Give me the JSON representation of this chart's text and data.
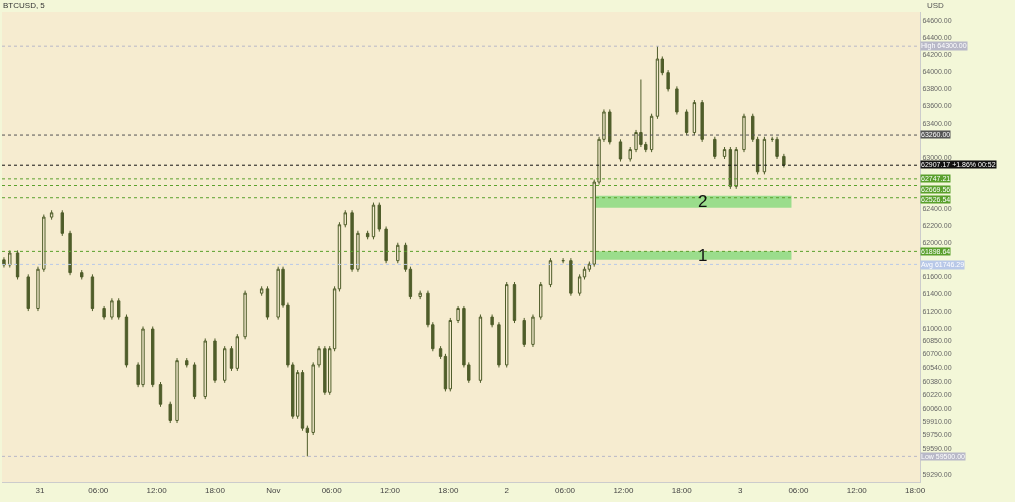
{
  "chart_data": {
    "type": "candlestick",
    "title": "BTCUSD, 5",
    "ylabel": "USD",
    "color": "#4f5d2a",
    "x": [
      "--10-30T20:18",
      "--10-30T20:54",
      "--10-30T21:42",
      "--10-30T22:48",
      "--10-30T23:48",
      "--10-31T00:24",
      "--10-31T01:12",
      "--10-31T02:18",
      "--10-31T03:06",
      "--10-31T04:18",
      "--10-31T05:24",
      "--10-31T06:36",
      "--10-31T07:24",
      "--10-31T08:06",
      "--10-31T08:54",
      "--10-31T10:06",
      "--10-31T10:36",
      "--10-31T11:36",
      "--10-31T12:24",
      "--10-31T13:24",
      "--10-31T14:06",
      "--10-31T15:06",
      "--10-31T15:54",
      "--10-31T17:00",
      "--10-31T18:00",
      "--10-31T19:00",
      "--10-31T19:42",
      "--10-31T20:18",
      "--10-31T21:06",
      "--10-31T22:48",
      "--10-31T23:24",
      "--11-01T00:30",
      "--11-01T01:00",
      "--11-01T01:30",
      "--11-01T02:00",
      "--11-01T02:30",
      "--11-01T03:00",
      "--11-01T03:30",
      "--11-01T04:06",
      "--11-01T04:42",
      "--11-01T05:18",
      "--11-01T05:48",
      "--11-01T06:18",
      "--11-01T06:48",
      "--11-01T07:24",
      "--11-01T08:06",
      "--11-01T08:42",
      "--11-01T09:42",
      "--11-01T10:18",
      "--11-01T10:54",
      "--11-01T11:36",
      "--11-01T12:48",
      "--11-01T13:36",
      "--11-01T14:06",
      "--11-01T15:06",
      "--11-01T15:54",
      "--11-01T16:24",
      "--11-01T17:12",
      "--11-01T17:42",
      "--11-01T18:12",
      "--11-01T19:00",
      "--11-01T19:36",
      "--11-01T20:06",
      "--11-01T21:18",
      "--11-01T22:30",
      "--11-01T23:12",
      "--11-02T00:00",
      "--11-02T00:48",
      "--11-02T01:48",
      "--11-02T02:42",
      "--11-02T03:30",
      "--11-02T04:30",
      "--11-02T05:48",
      "--11-02T06:36",
      "--11-02T07:30",
      "--11-02T08:00",
      "--11-02T08:30",
      "--11-02T09:00",
      "--11-02T09:30",
      "--11-02T10:00",
      "--11-02T10:36",
      "--11-02T11:42",
      "--11-02T12:42",
      "--11-02T13:18",
      "--11-02T13:48",
      "--11-02T14:18",
      "--11-02T14:54",
      "--11-02T15:30",
      "--11-02T16:00",
      "--11-02T16:36",
      "--11-02T17:30",
      "--11-02T18:30",
      "--11-02T19:18",
      "--11-02T20:06",
      "--11-02T21:24",
      "--11-02T22:24",
      "--11-02T23:00",
      "--11-02T23:36",
      "--11-03T00:24",
      "--11-03T01:18",
      "--11-03T01:48",
      "--11-03T02:30",
      "--11-03T03:18",
      "--11-03T03:48",
      "--11-03T04:30"
    ],
    "ohlc": [
      [
        61800,
        61830,
        61710,
        61740
      ],
      [
        61740,
        61910,
        61710,
        61880
      ],
      [
        61880,
        61910,
        61570,
        61600
      ],
      [
        61600,
        61630,
        61200,
        61230
      ],
      [
        61230,
        61720,
        61200,
        61690
      ],
      [
        61690,
        62330,
        61660,
        62300
      ],
      [
        62300,
        62380,
        62270,
        62350
      ],
      [
        62350,
        62380,
        62080,
        62110
      ],
      [
        62110,
        62140,
        61620,
        61650
      ],
      [
        61650,
        61680,
        61570,
        61600
      ],
      [
        61600,
        61630,
        61200,
        61230
      ],
      [
        61230,
        61260,
        61100,
        61130
      ],
      [
        61130,
        61350,
        61100,
        61320
      ],
      [
        61320,
        61350,
        61100,
        61130
      ],
      [
        61130,
        61160,
        60540,
        60570
      ],
      [
        60570,
        60600,
        60310,
        60340
      ],
      [
        60340,
        61020,
        60310,
        60990
      ],
      [
        60990,
        61020,
        60310,
        60340
      ],
      [
        60340,
        60370,
        60080,
        60110
      ],
      [
        60110,
        60140,
        59890,
        59920
      ],
      [
        59920,
        60650,
        59890,
        60620
      ],
      [
        60620,
        60650,
        60540,
        60570
      ],
      [
        60570,
        60600,
        60170,
        60200
      ],
      [
        60200,
        60880,
        60170,
        60850
      ],
      [
        60850,
        60880,
        60360,
        60390
      ],
      [
        60390,
        60790,
        60360,
        60760
      ],
      [
        60760,
        60790,
        60500,
        60530
      ],
      [
        60530,
        60930,
        60500,
        60900
      ],
      [
        60900,
        61440,
        60870,
        61410
      ],
      [
        61410,
        61490,
        61380,
        61460
      ],
      [
        61460,
        61490,
        61100,
        61130
      ],
      [
        61130,
        61720,
        61100,
        61690
      ],
      [
        61690,
        61720,
        61240,
        61270
      ],
      [
        61270,
        61300,
        60540,
        60570
      ],
      [
        60570,
        60600,
        59940,
        59970
      ],
      [
        59970,
        60510,
        59940,
        60480
      ],
      [
        60480,
        60510,
        59800,
        59830
      ],
      [
        59830,
        59860,
        59500,
        59780
      ],
      [
        59780,
        60600,
        59750,
        60570
      ],
      [
        60570,
        60790,
        60540,
        60760
      ],
      [
        60760,
        60790,
        60220,
        60250
      ],
      [
        60250,
        60790,
        60220,
        60760
      ],
      [
        60760,
        61490,
        60730,
        61460
      ],
      [
        61460,
        62240,
        61430,
        62210
      ],
      [
        62210,
        62380,
        62180,
        62350
      ],
      [
        62350,
        62380,
        61660,
        61690
      ],
      [
        61690,
        62140,
        61660,
        62110
      ],
      [
        62110,
        62140,
        62040,
        62070
      ],
      [
        62070,
        62470,
        62040,
        62440
      ],
      [
        62440,
        62470,
        62130,
        62160
      ],
      [
        62160,
        62190,
        61760,
        61790
      ],
      [
        61790,
        62000,
        61760,
        61970
      ],
      [
        61970,
        62000,
        61660,
        61690
      ],
      [
        61690,
        61720,
        61340,
        61370
      ],
      [
        61370,
        61440,
        61340,
        61410
      ],
      [
        61410,
        61440,
        61010,
        61040
      ],
      [
        61040,
        61070,
        60730,
        60760
      ],
      [
        60760,
        60790,
        60640,
        60670
      ],
      [
        60670,
        60700,
        60260,
        60290
      ],
      [
        60290,
        61120,
        60260,
        61090
      ],
      [
        61090,
        61260,
        61060,
        61230
      ],
      [
        61230,
        61260,
        60540,
        60570
      ],
      [
        60570,
        60600,
        60360,
        60390
      ],
      [
        60390,
        61160,
        60360,
        61130
      ],
      [
        61130,
        61160,
        61010,
        61040
      ],
      [
        61040,
        61070,
        60540,
        60570
      ],
      [
        60570,
        61540,
        60540,
        61510
      ],
      [
        61510,
        61540,
        61060,
        61090
      ],
      [
        61090,
        61120,
        60780,
        60810
      ],
      [
        60810,
        61160,
        60780,
        61130
      ],
      [
        61130,
        61540,
        61100,
        61510
      ],
      [
        61510,
        61820,
        61480,
        61790
      ],
      [
        61790,
        61820,
        61760,
        61790
      ],
      [
        61790,
        61820,
        61380,
        61410
      ],
      [
        61410,
        61630,
        61380,
        61600
      ],
      [
        61600,
        61720,
        61570,
        61690
      ],
      [
        61690,
        61780,
        61660,
        61750
      ],
      [
        61750,
        62740,
        61720,
        62710
      ],
      [
        62710,
        63240,
        62680,
        63210
      ],
      [
        63210,
        63560,
        63180,
        63530
      ],
      [
        63530,
        63560,
        63150,
        63180
      ],
      [
        63180,
        63210,
        62950,
        62980
      ],
      [
        62980,
        63120,
        62950,
        63090
      ],
      [
        63090,
        63320,
        63060,
        63290
      ],
      [
        63290,
        63910,
        63120,
        63150
      ],
      [
        63150,
        63180,
        63060,
        63090
      ],
      [
        63090,
        63510,
        63060,
        63480
      ],
      [
        63480,
        64300,
        63450,
        64150
      ],
      [
        64150,
        64180,
        63960,
        63990
      ],
      [
        63990,
        64020,
        63770,
        63800
      ],
      [
        63800,
        63830,
        63500,
        63530
      ],
      [
        63530,
        63560,
        63260,
        63290
      ],
      [
        63290,
        63670,
        63260,
        63640
      ],
      [
        63640,
        63670,
        63180,
        63210
      ],
      [
        63210,
        63240,
        62980,
        63010
      ],
      [
        63010,
        63120,
        62980,
        63090
      ],
      [
        63090,
        63120,
        62630,
        62660
      ],
      [
        62660,
        63120,
        62630,
        63090
      ],
      [
        63090,
        63510,
        63060,
        63480
      ],
      [
        63480,
        63510,
        63180,
        63210
      ],
      [
        63210,
        63240,
        62800,
        62830
      ],
      [
        62830,
        63240,
        62800,
        63210
      ],
      [
        63210,
        63240,
        63180,
        63210
      ],
      [
        63210,
        63240,
        62980,
        63010
      ],
      [
        63010,
        63040,
        62880,
        62910
      ]
    ],
    "xlim": [
      "--10-30T20:06",
      "--11-03T18:30"
    ],
    "xticks": [
      {
        "value": "--10-31",
        "label": "31"
      },
      {
        "value": "--10-31T06:00",
        "label": "06:00"
      },
      {
        "value": "--10-31T12:00",
        "label": "12:00"
      },
      {
        "value": "--10-31T18:00",
        "label": "18:00"
      },
      {
        "value": "--11-01",
        "label": "Nov"
      },
      {
        "value": "--11-01T06:00",
        "label": "06:00"
      },
      {
        "value": "--11-01T12:00",
        "label": "12:00"
      },
      {
        "value": "--11-01T18:00",
        "label": "18:00"
      },
      {
        "value": "--11-02",
        "label": "2"
      },
      {
        "value": "--11-02T06:00",
        "label": "06:00"
      },
      {
        "value": "--11-02T12:00",
        "label": "12:00"
      },
      {
        "value": "--11-02T18:00",
        "label": "18:00"
      },
      {
        "value": "--11-03",
        "label": "3"
      },
      {
        "value": "--11-03T06:00",
        "label": "06:00"
      },
      {
        "value": "--11-03T12:00",
        "label": "12:00"
      },
      {
        "value": "--11-03T18:00",
        "label": "18:00"
      }
    ],
    "ylim": [
      59200,
      64700
    ],
    "yticks": [
      {
        "value": 64600,
        "label": "64600.00"
      },
      {
        "value": 64400,
        "label": "64400.00"
      },
      {
        "value": 64200,
        "label": "64200.00"
      },
      {
        "value": 64000,
        "label": "64000.00"
      },
      {
        "value": 63800,
        "label": "63800.00"
      },
      {
        "value": 63600,
        "label": "63600.00"
      },
      {
        "value": 63400,
        "label": "63400.00"
      },
      {
        "value": 63000,
        "label": "63000.00"
      },
      {
        "value": 62400,
        "label": "62400.00"
      },
      {
        "value": 62200,
        "label": "62200.00"
      },
      {
        "value": 62000,
        "label": "62000.00"
      },
      {
        "value": 61600,
        "label": "61600.00"
      },
      {
        "value": 61400,
        "label": "61400.00"
      },
      {
        "value": 61200,
        "label": "61200.00"
      },
      {
        "value": 61000,
        "label": "61000.00"
      },
      {
        "value": 60850,
        "label": "60850.00"
      },
      {
        "value": 60700,
        "label": "60700.00"
      },
      {
        "value": 60540,
        "label": "60540.00"
      },
      {
        "value": 60380,
        "label": "60380.00"
      },
      {
        "value": 60220,
        "label": "60220.00"
      },
      {
        "value": 60060,
        "label": "60060.00"
      },
      {
        "value": 59910,
        "label": "59910.00"
      },
      {
        "value": 59750,
        "label": "59750.00"
      },
      {
        "value": 59590,
        "label": "59590.00"
      },
      {
        "value": 59290,
        "label": "59290.00"
      }
    ],
    "ref_lines": [
      {
        "axis": "y",
        "value": 64300,
        "label": "High 64300.00",
        "color": "#b8b8c8",
        "line_style": "dotted"
      },
      {
        "axis": "y",
        "value": 63260,
        "label": "63260.00",
        "color": "#555555",
        "line_style": "dotted"
      },
      {
        "axis": "y",
        "value": 62907.17,
        "label": "62907.17 +1.86% 00:52",
        "color": "#111111",
        "line_style": "dotted"
      },
      {
        "axis": "y",
        "value": 62747.21,
        "label": "62747.21",
        "color": "#5aa02c",
        "line_style": "dotted"
      },
      {
        "axis": "y",
        "value": 62669.56,
        "label": "62669.56",
        "color": "#5aa02c",
        "line_style": "dotted"
      },
      {
        "axis": "y",
        "value": 62526.54,
        "label": "62526.54",
        "color": "#5aa02c",
        "line_style": "dotted"
      },
      {
        "axis": "y",
        "value": 61898.64,
        "label": "61898.64",
        "color": "#5aa02c",
        "line_style": "dotted"
      },
      {
        "axis": "y",
        "value": 61746.29,
        "label": "Avg 61746.29",
        "color": "#b8c8e8",
        "line_style": "dotted"
      },
      {
        "axis": "y",
        "value": 59500,
        "label": "Low 59500.00",
        "color": "#b8b8c8",
        "line_style": "dotted"
      }
    ],
    "bands": [
      {
        "axis": "y",
        "from": 62410,
        "to": 62550,
        "label": "2",
        "color": "#5fd35f"
      },
      {
        "axis": "y",
        "from": 61800,
        "to": 61900,
        "label": "1",
        "color": "#5fd35f"
      }
    ],
    "grid": false,
    "legend": false
  }
}
